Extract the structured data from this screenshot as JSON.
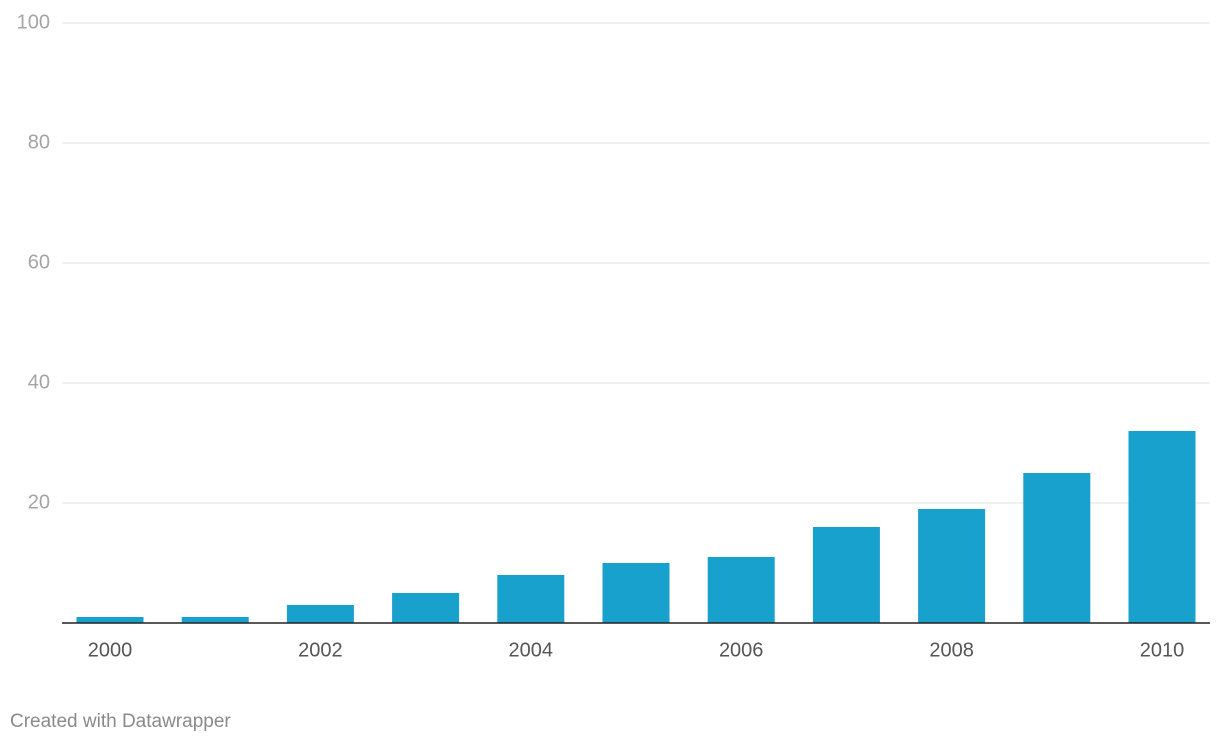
{
  "chart_data": {
    "type": "bar",
    "categories": [
      "2000",
      null,
      "2002",
      null,
      "2004",
      null,
      "2006",
      null,
      "2008",
      null,
      "2010"
    ],
    "values": [
      1,
      1,
      3,
      5,
      8,
      10,
      11,
      16,
      19,
      25,
      32
    ],
    "color": "#18a1cd",
    "ylim": [
      0,
      100
    ],
    "yticks": [
      20,
      40,
      60,
      80,
      100
    ],
    "grid": true,
    "credit": "Created with Datawrapper"
  }
}
